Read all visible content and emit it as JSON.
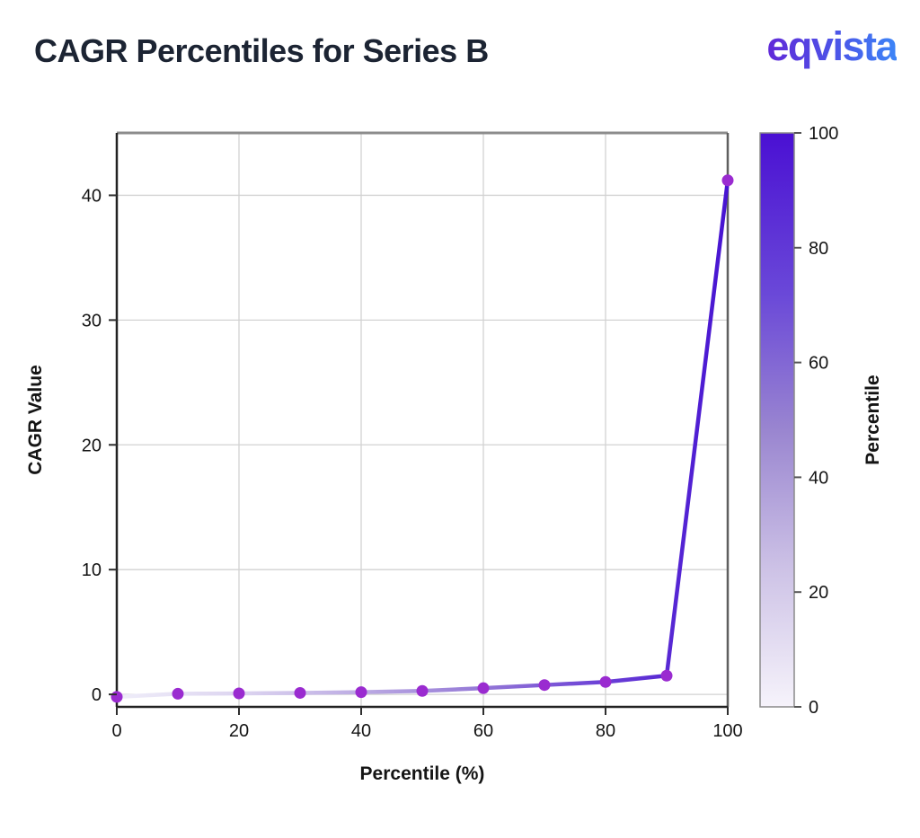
{
  "header": {
    "title": "CAGR Percentiles for Series B",
    "logo_text": "eqvista"
  },
  "colors": {
    "title_text": "#1c2433",
    "logo_gradient_start": "#6128d8",
    "logo_gradient_end": "#3c85f7",
    "marker": "#9a2bd0",
    "line_gradient": [
      "#efedf9",
      "#ddd5f0",
      "#bcabe3",
      "#9377d6",
      "#6a3fd6",
      "#4714d2"
    ],
    "colorbar_top": "#4a10d3",
    "colorbar_bottom": "#f6f3fb",
    "grid": "#d2d2d2",
    "spine_dark": "#222222",
    "spine_light": "#8c8c8c",
    "tick_text": "#141414"
  },
  "chart_data": {
    "type": "line",
    "title": "CAGR Percentiles for Series B",
    "x": [
      0,
      10,
      20,
      30,
      40,
      50,
      60,
      70,
      80,
      90,
      100
    ],
    "y": [
      -0.2,
      0.05,
      0.08,
      0.12,
      0.18,
      0.28,
      0.5,
      0.75,
      1.0,
      1.5,
      41.2
    ],
    "xlabel": "Percentile (%)",
    "ylabel": "CAGR Value",
    "xlim": [
      0,
      100
    ],
    "ylim": [
      -1,
      45
    ],
    "xticks": [
      0,
      20,
      40,
      60,
      80,
      100
    ],
    "yticks": [
      0,
      10,
      20,
      30,
      40
    ],
    "grid": true,
    "legend": "none",
    "colorbar": {
      "label": "Percentile",
      "min": 0,
      "max": 100,
      "ticks": [
        0,
        20,
        40,
        60,
        80,
        100
      ]
    }
  }
}
